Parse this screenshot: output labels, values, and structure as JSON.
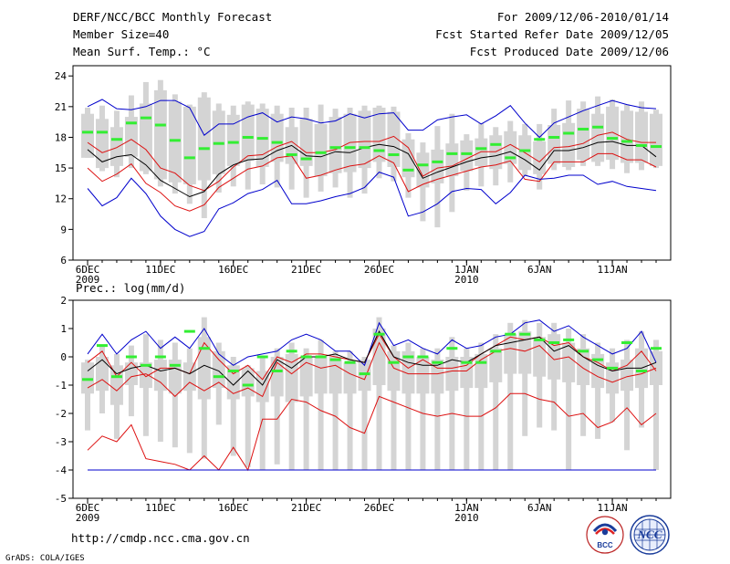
{
  "header": {
    "left_line1": "DERF/NCC/BCC Monthly Forecast",
    "left_line2": "Member Size=40",
    "left_line3": "Mean Surf. Temp.: °C",
    "right_line1": "For 2009/12/06-2010/01/14",
    "right_line2": "Fcst Started Refer Date 2009/12/05",
    "right_line3": "Fcst Produced Date 2009/12/06"
  },
  "footer": {
    "url": "http://cmdp.ncc.cma.gov.cn",
    "credit": "GrADS: COLA/IGES",
    "logo_bcc": "BCC",
    "logo_ncc": "NCC"
  },
  "colors": {
    "box": "#d4d4d4",
    "whisker": "#d4d4d4",
    "observed": "#33ee33",
    "mean": "#000000",
    "quantile": "#dd1111",
    "extreme": "#0000cc"
  },
  "chart_data": [
    {
      "id": "temperature",
      "type": "box-ensemble",
      "title": "Mean Surf. Temp.: °C",
      "ylim": [
        6,
        25
      ],
      "yticks": [
        6,
        9,
        12,
        15,
        18,
        21,
        24
      ],
      "x_count": 40,
      "x_ticks": [
        {
          "i": 0,
          "label": "6DEC",
          "sub": "2009"
        },
        {
          "i": 5,
          "label": "11DEC",
          "sub": ""
        },
        {
          "i": 10,
          "label": "16DEC",
          "sub": ""
        },
        {
          "i": 15,
          "label": "21DEC",
          "sub": ""
        },
        {
          "i": 20,
          "label": "26DEC",
          "sub": ""
        },
        {
          "i": 26,
          "label": "1JAN",
          "sub": "2010"
        },
        {
          "i": 31,
          "label": "6JAN",
          "sub": ""
        },
        {
          "i": 36,
          "label": "11JAN",
          "sub": ""
        }
      ],
      "series": {
        "max": [
          21.0,
          21.7,
          20.8,
          20.7,
          21.0,
          21.6,
          21.6,
          20.9,
          18.2,
          19.3,
          19.3,
          20.0,
          20.4,
          19.5,
          20.0,
          19.8,
          19.4,
          19.6,
          20.3,
          19.9,
          20.3,
          20.4,
          18.7,
          18.7,
          19.7,
          20.0,
          20.2,
          19.3,
          20.1,
          21.1,
          19.4,
          18.0,
          19.4,
          20.0,
          20.6,
          21.1,
          21.6,
          21.2,
          20.9,
          20.8
        ],
        "q_high": [
          17.5,
          16.5,
          17.0,
          17.8,
          16.8,
          15.0,
          14.5,
          13.3,
          12.8,
          13.7,
          15.1,
          16.2,
          16.3,
          17.1,
          17.6,
          16.5,
          16.5,
          16.8,
          17.5,
          17.6,
          17.6,
          18.1,
          17.0,
          14.2,
          15.0,
          15.2,
          15.9,
          16.6,
          16.6,
          17.3,
          16.5,
          15.6,
          17.0,
          17.1,
          17.4,
          18.2,
          18.5,
          17.8,
          17.5,
          17.5
        ],
        "mean": [
          16.8,
          15.6,
          16.1,
          16.3,
          15.3,
          13.8,
          13.0,
          12.2,
          12.7,
          14.4,
          15.3,
          15.8,
          15.9,
          16.7,
          17.2,
          16.2,
          16.1,
          16.6,
          16.5,
          17.0,
          17.3,
          17.1,
          16.4,
          14.0,
          14.6,
          15.1,
          15.6,
          16.0,
          16.2,
          16.6,
          15.8,
          14.8,
          16.7,
          16.7,
          17.0,
          17.5,
          17.6,
          17.2,
          17.2,
          16.1
        ],
        "q_low": [
          15.0,
          13.7,
          14.4,
          15.4,
          13.5,
          12.6,
          11.3,
          10.8,
          11.4,
          13.1,
          14.0,
          14.9,
          15.2,
          16.0,
          16.2,
          14.0,
          14.3,
          14.8,
          15.2,
          15.4,
          16.2,
          15.5,
          12.7,
          13.4,
          13.9,
          14.3,
          14.7,
          15.1,
          15.3,
          15.7,
          13.9,
          13.7,
          15.6,
          15.6,
          15.6,
          16.4,
          16.4,
          15.8,
          15.8,
          15.1
        ],
        "min": [
          13.0,
          11.3,
          12.1,
          14.0,
          12.5,
          10.3,
          9.0,
          8.3,
          8.8,
          11.0,
          11.6,
          12.5,
          12.9,
          13.8,
          11.5,
          11.5,
          11.8,
          12.2,
          12.5,
          13.1,
          14.6,
          14.1,
          10.3,
          10.7,
          11.5,
          12.7,
          13.0,
          12.9,
          11.5,
          12.6,
          14.3,
          13.9,
          14.0,
          14.3,
          14.3,
          13.4,
          13.7,
          13.2,
          13.0,
          12.8
        ],
        "observed": [
          18.5,
          18.5,
          17.8,
          19.4,
          19.9,
          19.2,
          17.7,
          16.0,
          16.9,
          17.4,
          17.5,
          18.0,
          17.9,
          17.5,
          16.3,
          15.9,
          16.5,
          17.0,
          17.0,
          17.0,
          16.7,
          16.3,
          14.8,
          15.3,
          15.6,
          16.4,
          16.4,
          16.9,
          17.3,
          16.0,
          16.7,
          17.8,
          18.0,
          18.4,
          18.8,
          19.0,
          17.9,
          17.6,
          17.2,
          17.1
        ],
        "box_top": [
          20.3,
          19.8,
          19.0,
          20.0,
          21.3,
          22.6,
          21.5,
          21.0,
          21.9,
          20.6,
          20.2,
          21.2,
          20.8,
          20.3,
          19.0,
          19.8,
          19.3,
          20.0,
          20.3,
          20.6,
          20.9,
          20.5,
          17.8,
          16.5,
          16.8,
          17.4,
          17.7,
          17.9,
          18.2,
          18.6,
          18.2,
          17.6,
          19.2,
          19.4,
          20.8,
          20.3,
          21.0,
          20.6,
          20.5,
          20.3
        ],
        "box_bot": [
          16.0,
          15.0,
          15.2,
          16.1,
          14.7,
          13.9,
          13.6,
          13.4,
          13.8,
          14.4,
          15.2,
          15.7,
          15.1,
          15.6,
          15.4,
          15.2,
          14.2,
          14.5,
          14.6,
          15.0,
          15.6,
          15.1,
          14.1,
          13.1,
          13.5,
          14.2,
          14.7,
          15.2,
          14.9,
          15.4,
          14.8,
          14.4,
          15.4,
          15.1,
          15.8,
          15.6,
          15.8,
          15.5,
          15.5,
          15.2
        ],
        "whisk_top": [
          20.9,
          21.1,
          20.6,
          22.1,
          23.4,
          23.6,
          22.2,
          21.2,
          22.4,
          21.3,
          21.1,
          21.5,
          21.3,
          21.1,
          20.9,
          20.9,
          21.2,
          20.8,
          20.9,
          21.1,
          21.1,
          21.0,
          18.4,
          17.5,
          19.1,
          20.3,
          18.3,
          19.4,
          19.0,
          19.6,
          19.3,
          19.3,
          20.8,
          21.6,
          21.5,
          22.0,
          21.7,
          21.2,
          21.5,
          20.7
        ],
        "whisk_bot": [
          16.0,
          14.7,
          14.1,
          15.0,
          14.4,
          13.2,
          12.5,
          11.5,
          10.1,
          12.6,
          13.2,
          12.9,
          13.4,
          13.1,
          12.9,
          12.1,
          12.7,
          13.1,
          12.1,
          12.5,
          14.0,
          13.7,
          12.1,
          9.8,
          9.2,
          10.7,
          12.8,
          13.2,
          13.3,
          13.6,
          14.2,
          12.9,
          14.8,
          14.8,
          15.2,
          15.2,
          14.9,
          14.5,
          14.8,
          15.0
        ]
      }
    },
    {
      "id": "precipitation",
      "type": "box-ensemble",
      "title": "Prec.: log(mm/d)",
      "ylim": [
        -5,
        2
      ],
      "yticks": [
        -5,
        -4,
        -3,
        -2,
        -1,
        0,
        1,
        2
      ],
      "x_count": 40,
      "x_ticks": [
        {
          "i": 0,
          "label": "6DEC",
          "sub": "2009"
        },
        {
          "i": 5,
          "label": "11DEC",
          "sub": ""
        },
        {
          "i": 10,
          "label": "16DEC",
          "sub": ""
        },
        {
          "i": 15,
          "label": "21DEC",
          "sub": ""
        },
        {
          "i": 20,
          "label": "26DEC",
          "sub": ""
        },
        {
          "i": 26,
          "label": "1JAN",
          "sub": "2010"
        },
        {
          "i": 31,
          "label": "6JAN",
          "sub": ""
        },
        {
          "i": 36,
          "label": "11JAN",
          "sub": ""
        }
      ],
      "series": {
        "max": [
          0.1,
          0.8,
          0.1,
          0.6,
          0.9,
          0.3,
          0.7,
          0.3,
          1.0,
          0.1,
          -0.3,
          0.0,
          0.1,
          0.2,
          0.6,
          0.8,
          0.6,
          0.2,
          0.2,
          -0.3,
          1.2,
          0.4,
          0.6,
          0.3,
          0.1,
          0.6,
          0.3,
          0.4,
          0.7,
          0.8,
          1.2,
          1.3,
          0.9,
          1.1,
          0.7,
          0.4,
          0.1,
          0.3,
          0.9,
          -0.2
        ],
        "q_high": [
          -0.2,
          0.2,
          -0.7,
          -0.2,
          -0.7,
          -0.4,
          -0.4,
          -0.6,
          0.5,
          -0.1,
          -0.6,
          -0.3,
          -0.8,
          0.0,
          -0.2,
          0.1,
          0.1,
          0.0,
          -0.1,
          -0.2,
          0.8,
          0.0,
          -0.4,
          -0.1,
          -0.4,
          -0.4,
          -0.3,
          0.1,
          0.4,
          0.7,
          0.6,
          0.7,
          0.4,
          0.5,
          0.0,
          -0.2,
          -0.5,
          -0.3,
          0.2,
          -0.5
        ],
        "mean": [
          -0.5,
          -0.1,
          -0.6,
          -0.4,
          -0.3,
          -0.5,
          -0.4,
          -0.6,
          -0.3,
          -0.5,
          -1.0,
          -0.5,
          -1.0,
          -0.1,
          -0.4,
          0.0,
          0.0,
          0.1,
          -0.1,
          -0.2,
          0.9,
          0.0,
          -0.2,
          -0.3,
          -0.3,
          -0.1,
          -0.2,
          0.1,
          0.4,
          0.5,
          0.6,
          0.7,
          0.2,
          0.4,
          0.0,
          -0.3,
          -0.5,
          -0.4,
          -0.4,
          -0.2
        ],
        "q_low": [
          -1.1,
          -0.8,
          -1.2,
          -0.7,
          -0.6,
          -0.9,
          -1.4,
          -0.9,
          -1.2,
          -0.9,
          -1.3,
          -1.1,
          -1.4,
          -0.2,
          -0.6,
          -0.2,
          -0.4,
          -0.3,
          -0.6,
          -0.8,
          0.5,
          -0.4,
          -0.6,
          -0.6,
          -0.6,
          -0.5,
          -0.5,
          -0.1,
          0.2,
          0.3,
          0.2,
          0.4,
          -0.1,
          0.0,
          -0.4,
          -0.7,
          -0.9,
          -0.7,
          -0.6,
          -0.4
        ],
        "very_low": [
          -3.3,
          -2.8,
          -3.0,
          -2.4,
          -3.6,
          -3.7,
          -3.8,
          -4.0,
          -3.5,
          -4.0,
          -3.2,
          -4.0,
          -2.2,
          -2.2,
          -1.5,
          -1.6,
          -1.9,
          -2.1,
          -2.5,
          -2.7,
          -1.4,
          -1.6,
          -1.8,
          -2.0,
          -2.1,
          -2.0,
          -2.1,
          -2.1,
          -1.8,
          -1.3,
          -1.3,
          -1.5,
          -1.6,
          -2.1,
          -2.0,
          -2.5,
          -2.3,
          -1.8,
          -2.4,
          -2.0
        ],
        "min": [
          -4.0,
          -4.0,
          -4.0,
          -4.0,
          -4.0,
          -4.0,
          -4.0,
          -4.0,
          -4.0,
          -4.0,
          -4.0,
          -4.0,
          -4.0,
          -4.0,
          -4.0,
          -4.0,
          -4.0,
          -4.0,
          -4.0,
          -4.0,
          -4.0,
          -4.0,
          -4.0,
          -4.0,
          -4.0,
          -4.0,
          -4.0,
          -4.0,
          -4.0,
          -4.0,
          -4.0,
          -4.0,
          -4.0,
          -4.0,
          -4.0,
          -4.0,
          -4.0,
          -4.0,
          -4.0,
          -4.0
        ],
        "observed": [
          -0.8,
          0.4,
          -0.7,
          0.0,
          -0.3,
          0.0,
          -0.3,
          0.9,
          0.3,
          -0.7,
          -0.5,
          -1.0,
          0.0,
          -0.5,
          0.2,
          0.0,
          0.0,
          -0.1,
          -0.2,
          -0.6,
          0.8,
          -0.2,
          0.0,
          0.0,
          -0.2,
          0.3,
          -0.2,
          -0.2,
          0.2,
          0.8,
          0.8,
          0.6,
          0.5,
          0.6,
          0.2,
          -0.1,
          -0.4,
          0.5,
          -0.5,
          0.3
        ],
        "box_top": [
          -0.2,
          0.0,
          -0.3,
          -0.2,
          -0.2,
          -0.1,
          -0.1,
          -0.2,
          0.7,
          0.2,
          -0.3,
          -0.4,
          -0.5,
          0.0,
          0.1,
          0.0,
          0.0,
          0.0,
          -0.2,
          -0.1,
          1.0,
          0.2,
          0.2,
          0.0,
          -0.1,
          0.0,
          0.0,
          0.1,
          0.3,
          0.8,
          0.9,
          0.7,
          0.8,
          0.5,
          0.3,
          0.1,
          -0.2,
          -0.1,
          0.3,
          0.2
        ],
        "box_bot": [
          -1.3,
          -1.2,
          -1.7,
          -1.0,
          -1.1,
          -1.2,
          -1.3,
          -1.2,
          -1.5,
          -1.1,
          -1.5,
          -1.4,
          -1.6,
          -1.4,
          -1.6,
          -1.4,
          -1.3,
          -1.3,
          -1.3,
          -1.2,
          -1.0,
          -1.2,
          -1.3,
          -1.3,
          -1.3,
          -1.2,
          -1.1,
          -1.1,
          -0.9,
          -0.6,
          -0.6,
          -0.7,
          -0.8,
          -0.9,
          -1.0,
          -1.1,
          -1.3,
          -1.2,
          -1.1,
          -1.0
        ],
        "whisk_top": [
          -0.1,
          0.4,
          0.1,
          0.4,
          0.8,
          0.6,
          0.5,
          0.3,
          1.4,
          0.5,
          0.0,
          -0.3,
          0.0,
          0.3,
          0.5,
          0.3,
          0.6,
          0.2,
          0.2,
          0.0,
          1.4,
          0.4,
          0.5,
          0.3,
          0.3,
          0.7,
          0.3,
          0.5,
          0.8,
          1.2,
          1.3,
          1.2,
          1.2,
          1.0,
          0.8,
          0.5,
          0.3,
          0.6,
          0.9,
          0.6
        ],
        "whisk_bot": [
          -2.6,
          -2.0,
          -2.9,
          -2.1,
          -2.8,
          -3.0,
          -3.2,
          -3.4,
          -3.6,
          -2.4,
          -3.5,
          -3.9,
          -4.0,
          -3.8,
          -4.0,
          -4.0,
          -4.0,
          -4.0,
          -4.0,
          -4.0,
          -4.0,
          -4.0,
          -4.0,
          -4.0,
          -4.0,
          -4.0,
          -4.0,
          -4.0,
          -4.0,
          -4.0,
          -2.8,
          -2.5,
          -2.6,
          -4.0,
          -2.8,
          -2.9,
          -2.3,
          -3.3,
          -2.5,
          -4.0
        ]
      }
    }
  ]
}
